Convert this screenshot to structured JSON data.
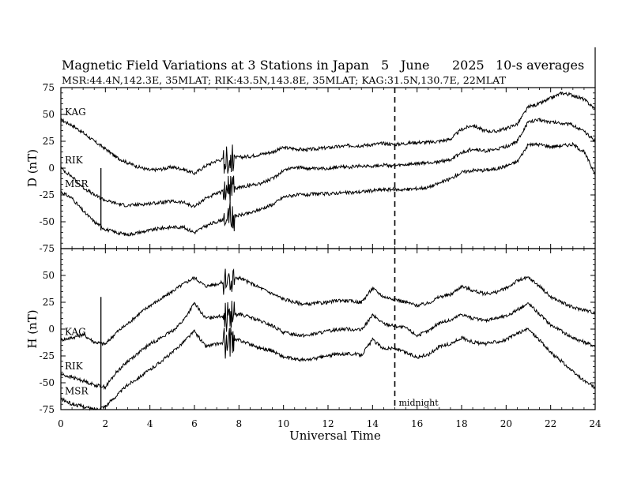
{
  "chart_data": {
    "type": "line",
    "title": "Magnetic Field Variations at 3 Stations in Japan",
    "date": {
      "day": "5",
      "month": "June",
      "year": "2025"
    },
    "averaging": "10-s averages",
    "stations_line": "MSR:44.4N,142.3E, 35MLAT;  RIK:43.5N,143.8E, 35MLAT;  KAG:31.5N,130.7E, 22MLAT",
    "xlabel": "Universal Time",
    "xlim": [
      0,
      24
    ],
    "x_ticks": [
      "0",
      "2",
      "4",
      "6",
      "8",
      "10",
      "12",
      "14",
      "16",
      "18",
      "20",
      "22",
      "24"
    ],
    "annotation": {
      "text": "midnight",
      "x": 15
    },
    "panels": [
      {
        "ylabel": "D (nT)",
        "ylim": [
          -75,
          75
        ],
        "y_ticks": [
          "75",
          "50",
          "25",
          "0",
          "-25",
          "-50",
          "-75"
        ],
        "series": [
          {
            "name": "KAG",
            "x": [
              0,
              0.5,
              1,
              1.5,
              2,
              2.5,
              3,
              3.5,
              4,
              4.5,
              5,
              5.5,
              6,
              6.5,
              7,
              7.5,
              8,
              8.5,
              9,
              9.5,
              10,
              10.5,
              11,
              11.5,
              12,
              12.5,
              13,
              13.5,
              14,
              14.5,
              15,
              15.5,
              16,
              16.5,
              17,
              17.5,
              18,
              18.5,
              19,
              19.5,
              20,
              20.5,
              21,
              21.5,
              22,
              22.5,
              23,
              23.5,
              24
            ],
            "y": [
              45,
              40,
              33,
              25,
              18,
              10,
              5,
              1,
              -2,
              -1,
              1,
              -1,
              -5,
              2,
              7,
              9,
              10,
              11,
              13,
              15,
              19,
              18,
              17,
              18,
              19,
              20,
              21,
              21,
              22,
              23,
              22,
              23,
              24,
              24,
              25,
              27,
              36,
              40,
              35,
              34,
              37,
              41,
              57,
              60,
              65,
              70,
              68,
              64,
              55
            ]
          },
          {
            "name": "RIK",
            "x": [
              0,
              0.5,
              1,
              1.5,
              2,
              2.5,
              3,
              3.5,
              4,
              4.5,
              5,
              5.5,
              6,
              6.5,
              7,
              7.5,
              8,
              8.5,
              9,
              9.5,
              10,
              10.5,
              11,
              11.5,
              12,
              12.5,
              13,
              13.5,
              14,
              14.5,
              15,
              15.5,
              16,
              16.5,
              17,
              17.5,
              18,
              18.5,
              19,
              19.5,
              20,
              20.5,
              21,
              21.5,
              22,
              22.5,
              23,
              23.5,
              24
            ],
            "y": [
              0,
              -8,
              -18,
              -25,
              -30,
              -33,
              -35,
              -34,
              -33,
              -32,
              -31,
              -32,
              -36,
              -28,
              -24,
              -20,
              -18,
              -16,
              -14,
              -10,
              -2,
              1,
              0,
              -1,
              0,
              1,
              1,
              2,
              2,
              3,
              2,
              3,
              4,
              5,
              6,
              8,
              14,
              18,
              16,
              17,
              20,
              25,
              43,
              45,
              43,
              42,
              40,
              34,
              25
            ]
          },
          {
            "name": "MSR",
            "x": [
              0,
              0.5,
              1,
              1.5,
              2,
              2.5,
              3,
              3.5,
              4,
              4.5,
              5,
              5.5,
              6,
              6.5,
              7,
              7.5,
              8,
              8.5,
              9,
              9.5,
              10,
              10.5,
              11,
              11.5,
              12,
              12.5,
              13,
              13.5,
              14,
              14.5,
              15,
              15.5,
              16,
              16.5,
              17,
              17.5,
              18,
              18.5,
              19,
              19.5,
              20,
              20.5,
              21,
              21.5,
              22,
              22.5,
              23,
              23.5,
              24
            ],
            "y": [
              -22,
              -28,
              -40,
              -50,
              -57,
              -60,
              -62,
              -60,
              -58,
              -56,
              -55,
              -55,
              -60,
              -54,
              -50,
              -46,
              -44,
              -42,
              -38,
              -34,
              -27,
              -25,
              -25,
              -24,
              -24,
              -23,
              -23,
              -22,
              -21,
              -20,
              -20,
              -20,
              -19,
              -18,
              -14,
              -10,
              -4,
              -2,
              -2,
              -1,
              2,
              6,
              22,
              22,
              20,
              21,
              22,
              15,
              -5
            ]
          }
        ]
      },
      {
        "ylabel": "H (nT)",
        "ylim": [
          -75,
          75
        ],
        "y_ticks": [
          "75",
          "50",
          "25",
          "0",
          "-25",
          "-50",
          "-75"
        ],
        "series": [
          {
            "name": "KAG",
            "x": [
              0,
              0.5,
              1,
              1.5,
              2,
              2.5,
              3,
              3.5,
              4,
              4.5,
              5,
              5.5,
              6,
              6.5,
              7,
              7.5,
              8,
              8.5,
              9,
              9.5,
              10,
              10.5,
              11,
              11.5,
              12,
              12.5,
              13,
              13.5,
              14,
              14.5,
              15,
              15.5,
              16,
              16.5,
              17,
              17.5,
              18,
              18.5,
              19,
              19.5,
              20,
              20.5,
              21,
              21.5,
              22,
              22.5,
              23,
              23.5,
              24
            ],
            "y": [
              -10,
              -8,
              -5,
              -12,
              -14,
              -3,
              5,
              14,
              22,
              28,
              35,
              42,
              48,
              40,
              42,
              45,
              48,
              43,
              38,
              33,
              28,
              25,
              23,
              24,
              25,
              27,
              26,
              25,
              38,
              30,
              28,
              25,
              22,
              24,
              30,
              32,
              40,
              36,
              33,
              34,
              38,
              45,
              48,
              40,
              30,
              25,
              20,
              18,
              15
            ]
          },
          {
            "name": "RIK",
            "x": [
              0,
              0.5,
              1,
              1.5,
              2,
              2.5,
              3,
              3.5,
              4,
              4.5,
              5,
              5.5,
              6,
              6.5,
              7,
              7.5,
              8,
              8.5,
              9,
              9.5,
              10,
              10.5,
              11,
              11.5,
              12,
              12.5,
              13,
              13.5,
              14,
              14.5,
              15,
              15.5,
              16,
              16.5,
              17,
              17.5,
              18,
              18.5,
              19,
              19.5,
              20,
              20.5,
              21,
              21.5,
              22,
              22.5,
              23,
              23.5,
              24
            ],
            "y": [
              -42,
              -45,
              -48,
              -52,
              -54,
              -40,
              -30,
              -22,
              -14,
              -8,
              -2,
              8,
              24,
              10,
              12,
              12,
              14,
              11,
              7,
              3,
              -3,
              -5,
              -6,
              -4,
              -2,
              0,
              0,
              -1,
              13,
              5,
              3,
              1,
              -6,
              -2,
              6,
              8,
              14,
              10,
              8,
              10,
              12,
              18,
              24,
              14,
              4,
              -2,
              -8,
              -12,
              -16
            ]
          },
          {
            "name": "MSR",
            "x": [
              0,
              0.5,
              1,
              1.5,
              2,
              2.5,
              3,
              3.5,
              4,
              4.5,
              5,
              5.5,
              6,
              6.5,
              7,
              7.5,
              8,
              8.5,
              9,
              9.5,
              10,
              10.5,
              11,
              11.5,
              12,
              12.5,
              13,
              13.5,
              14,
              14.5,
              15,
              15.5,
              16,
              16.5,
              17,
              17.5,
              18,
              18.5,
              19,
              19.5,
              20,
              20.5,
              21,
              21.5,
              22,
              22.5,
              23,
              23.5,
              24
            ],
            "y": [
              -65,
              -70,
              -72,
              -75,
              -72,
              -62,
              -52,
              -45,
              -38,
              -30,
              -22,
              -12,
              -2,
              -16,
              -14,
              -12,
              -10,
              -14,
              -18,
              -20,
              -26,
              -28,
              -29,
              -27,
              -25,
              -23,
              -23,
              -24,
              -10,
              -18,
              -18,
              -22,
              -26,
              -24,
              -16,
              -14,
              -8,
              -12,
              -14,
              -12,
              -10,
              -4,
              0,
              -10,
              -22,
              -30,
              -40,
              -48,
              -55
            ]
          }
        ]
      }
    ]
  },
  "colors": {
    "line": "#000000",
    "background": "#ffffff"
  }
}
